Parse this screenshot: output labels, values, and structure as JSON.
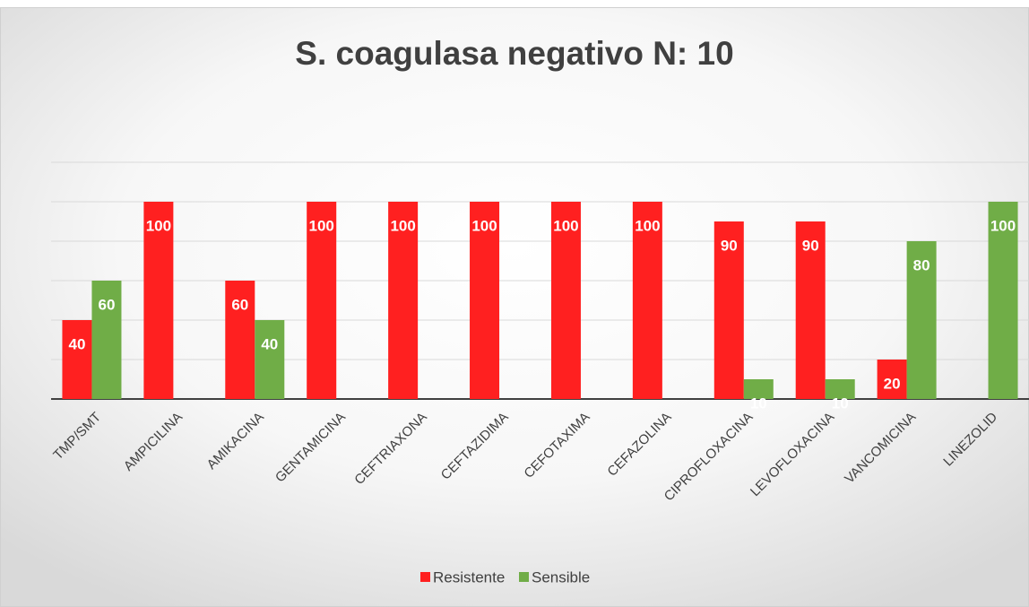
{
  "chart_data": {
    "type": "bar",
    "title": "S. coagulasa negativo N: 10",
    "categories": [
      "TMP/SMT",
      "AMPICILINA",
      "AMIKACINA",
      "GENTAMICINA",
      "CEFTRIAXONA",
      "CEFTAZIDIMA",
      "CEFOTAXIMA",
      "CEFAZOLINA",
      "CIPROFLOXACINA",
      "LEVOFLOXACINA",
      "VANCOMICINA",
      "LINEZOLID"
    ],
    "series": [
      {
        "name": "Resistente",
        "color": "#ff2020",
        "values": [
          40,
          100,
          60,
          100,
          100,
          100,
          100,
          100,
          90,
          90,
          20,
          null
        ]
      },
      {
        "name": "Sensible",
        "color": "#70ad47",
        "values": [
          60,
          null,
          40,
          null,
          null,
          null,
          null,
          null,
          10,
          10,
          80,
          100
        ]
      }
    ],
    "ylim": [
      0,
      120
    ],
    "yticks": [
      0,
      20,
      40,
      60,
      80,
      100,
      120
    ],
    "grid": true,
    "legend": "bottom"
  }
}
